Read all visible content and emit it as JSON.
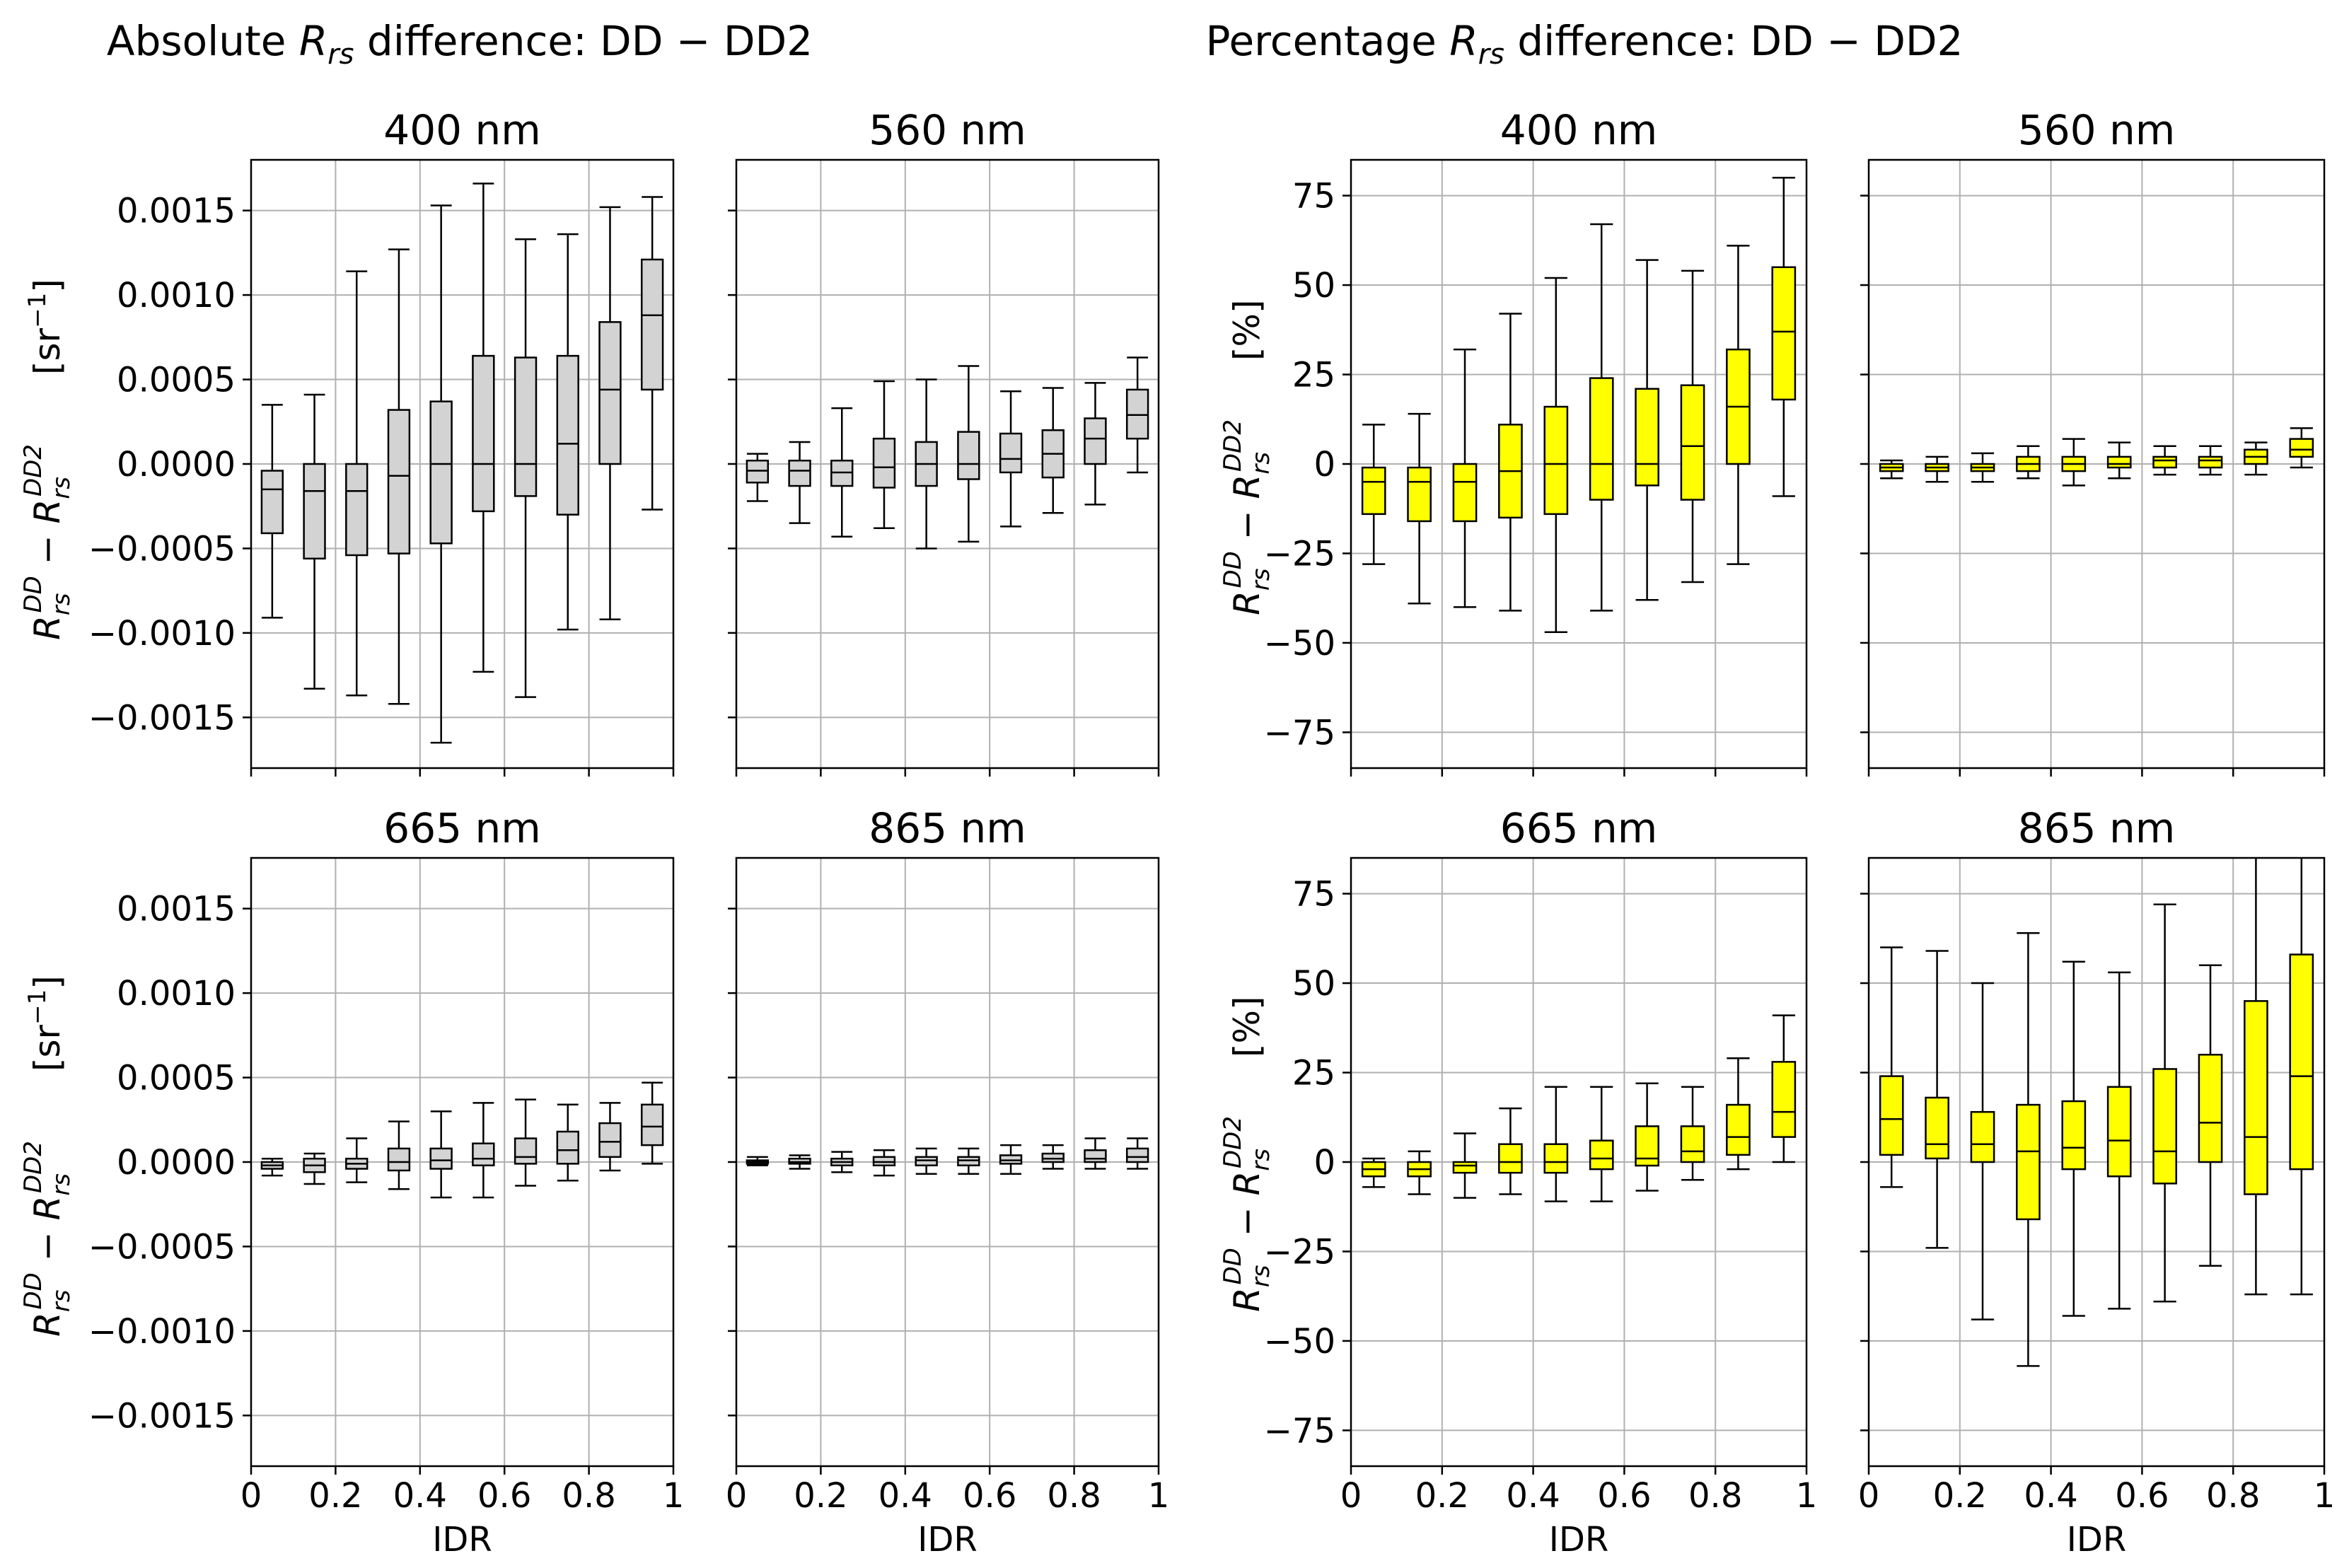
{
  "figure": {
    "left_title": {
      "pre": "Absolute ",
      "r": "R",
      "sub": "rs",
      "post": " difference: DD − DD2"
    },
    "right_title": {
      "pre": "Percentage ",
      "r": "R",
      "sub": "rs",
      "post": " difference: DD − DD2"
    },
    "abs_ylabel": {
      "unit_pre": "[sr",
      "unit_sup": "−1",
      "unit_post": "]"
    },
    "pct_ylabel": {
      "unit": "[%]"
    },
    "colors": {
      "abs_box": "#d3d3d3",
      "pct_box": "#ffff00",
      "edge": "#000000",
      "grid": "#b0b0b0"
    }
  },
  "chart_data": [
    {
      "type": "box",
      "group": "absolute",
      "title": "400 nm",
      "xlabel": "",
      "xlim": [
        0,
        1
      ],
      "ylim": [
        -0.0018,
        0.0018
      ],
      "yticks": [
        -0.0015,
        -0.001,
        -0.0005,
        0.0,
        0.0005,
        0.001,
        0.0015
      ],
      "yticklabels": [
        "−0.0015",
        "−0.0010",
        "−0.0005",
        "0.0000",
        "0.0005",
        "0.0010",
        "0.0015"
      ],
      "xticks": [
        0,
        0.2,
        0.4,
        0.6,
        0.8,
        1
      ],
      "xticklabels": [],
      "boxes": [
        {
          "x": 0.05,
          "whislo": -0.00091,
          "q1": -0.00041,
          "med": -0.00015,
          "q3": -4e-05,
          "whishi": 0.00035
        },
        {
          "x": 0.15,
          "whislo": -0.00133,
          "q1": -0.00056,
          "med": -0.00016,
          "q3": 0.0,
          "whishi": 0.00041
        },
        {
          "x": 0.25,
          "whislo": -0.00137,
          "q1": -0.00054,
          "med": -0.00016,
          "q3": 0.0,
          "whishi": 0.00114
        },
        {
          "x": 0.35,
          "whislo": -0.00142,
          "q1": -0.00053,
          "med": -7e-05,
          "q3": 0.00032,
          "whishi": 0.00127
        },
        {
          "x": 0.45,
          "whislo": -0.00165,
          "q1": -0.00047,
          "med": 0.0,
          "q3": 0.00037,
          "whishi": 0.00153
        },
        {
          "x": 0.55,
          "whislo": -0.00123,
          "q1": -0.00028,
          "med": 0.0,
          "q3": 0.00064,
          "whishi": 0.00166
        },
        {
          "x": 0.65,
          "whislo": -0.00138,
          "q1": -0.00019,
          "med": 0.0,
          "q3": 0.00063,
          "whishi": 0.00133
        },
        {
          "x": 0.75,
          "whislo": -0.00098,
          "q1": -0.0003,
          "med": 0.00012,
          "q3": 0.00064,
          "whishi": 0.00136
        },
        {
          "x": 0.85,
          "whislo": -0.00092,
          "q1": 0.0,
          "med": 0.00044,
          "q3": 0.00084,
          "whishi": 0.00152
        },
        {
          "x": 0.95,
          "whislo": -0.00027,
          "q1": 0.00044,
          "med": 0.00088,
          "q3": 0.00121,
          "whishi": 0.00158
        }
      ]
    },
    {
      "type": "box",
      "group": "absolute",
      "title": "560 nm",
      "xlabel": "",
      "xlim": [
        0,
        1
      ],
      "ylim": [
        -0.0018,
        0.0018
      ],
      "yticks": [
        -0.0015,
        -0.001,
        -0.0005,
        0.0,
        0.0005,
        0.001,
        0.0015
      ],
      "yticklabels": [],
      "xticks": [
        0,
        0.2,
        0.4,
        0.6,
        0.8,
        1
      ],
      "xticklabels": [],
      "boxes": [
        {
          "x": 0.05,
          "whislo": -0.00022,
          "q1": -0.00011,
          "med": -4e-05,
          "q3": 2e-05,
          "whishi": 6e-05
        },
        {
          "x": 0.15,
          "whislo": -0.00035,
          "q1": -0.00013,
          "med": -4e-05,
          "q3": 2e-05,
          "whishi": 0.00013
        },
        {
          "x": 0.25,
          "whislo": -0.00043,
          "q1": -0.00013,
          "med": -5e-05,
          "q3": 2e-05,
          "whishi": 0.00033
        },
        {
          "x": 0.35,
          "whislo": -0.00038,
          "q1": -0.00014,
          "med": -2e-05,
          "q3": 0.00015,
          "whishi": 0.00049
        },
        {
          "x": 0.45,
          "whislo": -0.0005,
          "q1": -0.00013,
          "med": 0.0,
          "q3": 0.00013,
          "whishi": 0.0005
        },
        {
          "x": 0.55,
          "whislo": -0.00046,
          "q1": -9e-05,
          "med": 0.0,
          "q3": 0.00019,
          "whishi": 0.00058
        },
        {
          "x": 0.65,
          "whislo": -0.00037,
          "q1": -5e-05,
          "med": 3e-05,
          "q3": 0.00018,
          "whishi": 0.00043
        },
        {
          "x": 0.75,
          "whislo": -0.00029,
          "q1": -8e-05,
          "med": 6e-05,
          "q3": 0.0002,
          "whishi": 0.00045
        },
        {
          "x": 0.85,
          "whislo": -0.00024,
          "q1": 0.0,
          "med": 0.00015,
          "q3": 0.00027,
          "whishi": 0.00048
        },
        {
          "x": 0.95,
          "whislo": -5e-05,
          "q1": 0.00015,
          "med": 0.00029,
          "q3": 0.00044,
          "whishi": 0.00063
        }
      ]
    },
    {
      "type": "box",
      "group": "absolute",
      "title": "665 nm",
      "xlabel": "IDR",
      "xlim": [
        0,
        1
      ],
      "ylim": [
        -0.0018,
        0.0018
      ],
      "yticks": [
        -0.0015,
        -0.001,
        -0.0005,
        0.0,
        0.0005,
        0.001,
        0.0015
      ],
      "yticklabels": [
        "−0.0015",
        "−0.0010",
        "−0.0005",
        "0.0000",
        "0.0005",
        "0.0010",
        "0.0015"
      ],
      "xticks": [
        0,
        0.2,
        0.4,
        0.6,
        0.8,
        1
      ],
      "xticklabels": [
        "0",
        "0.2",
        "0.4",
        "0.6",
        "0.8",
        "1"
      ],
      "boxes": [
        {
          "x": 0.05,
          "whislo": -8e-05,
          "q1": -4e-05,
          "med": -2e-05,
          "q3": 0.0,
          "whishi": 2e-05
        },
        {
          "x": 0.15,
          "whislo": -0.00013,
          "q1": -6e-05,
          "med": -2e-05,
          "q3": 2e-05,
          "whishi": 5e-05
        },
        {
          "x": 0.25,
          "whislo": -0.00012,
          "q1": -4e-05,
          "med": -1e-05,
          "q3": 2e-05,
          "whishi": 0.00014
        },
        {
          "x": 0.35,
          "whislo": -0.00016,
          "q1": -5e-05,
          "med": 0.0,
          "q3": 8e-05,
          "whishi": 0.00024
        },
        {
          "x": 0.45,
          "whislo": -0.00021,
          "q1": -4e-05,
          "med": 1e-05,
          "q3": 8e-05,
          "whishi": 0.0003
        },
        {
          "x": 0.55,
          "whislo": -0.00021,
          "q1": -2e-05,
          "med": 2e-05,
          "q3": 0.00011,
          "whishi": 0.00035
        },
        {
          "x": 0.65,
          "whislo": -0.00014,
          "q1": -1e-05,
          "med": 3e-05,
          "q3": 0.00014,
          "whishi": 0.00037
        },
        {
          "x": 0.75,
          "whislo": -0.00011,
          "q1": -1e-05,
          "med": 7e-05,
          "q3": 0.00018,
          "whishi": 0.00034
        },
        {
          "x": 0.85,
          "whislo": -5e-05,
          "q1": 3e-05,
          "med": 0.00012,
          "q3": 0.00023,
          "whishi": 0.00035
        },
        {
          "x": 0.95,
          "whislo": -1e-05,
          "q1": 0.0001,
          "med": 0.00021,
          "q3": 0.00034,
          "whishi": 0.00047
        }
      ]
    },
    {
      "type": "box",
      "group": "absolute",
      "title": "865 nm",
      "xlabel": "IDR",
      "xlim": [
        0,
        1
      ],
      "ylim": [
        -0.0018,
        0.0018
      ],
      "yticks": [
        -0.0015,
        -0.001,
        -0.0005,
        0.0,
        0.0005,
        0.001,
        0.0015
      ],
      "yticklabels": [],
      "xticks": [
        0,
        0.2,
        0.4,
        0.6,
        0.8,
        1
      ],
      "xticklabels": [
        "0",
        "0.2",
        "0.4",
        "0.6",
        "0.8",
        "1"
      ],
      "boxes": [
        {
          "x": 0.05,
          "whislo": -2e-05,
          "q1": -1e-05,
          "med": 0.0,
          "q3": 1e-05,
          "whishi": 3e-05
        },
        {
          "x": 0.15,
          "whislo": -4e-05,
          "q1": -1e-05,
          "med": 0.0,
          "q3": 2e-05,
          "whishi": 4e-05
        },
        {
          "x": 0.25,
          "whislo": -6e-05,
          "q1": -2e-05,
          "med": 0.0,
          "q3": 2e-05,
          "whishi": 6e-05
        },
        {
          "x": 0.35,
          "whislo": -8e-05,
          "q1": -2e-05,
          "med": 0.0,
          "q3": 3e-05,
          "whishi": 7e-05
        },
        {
          "x": 0.45,
          "whislo": -7e-05,
          "q1": -2e-05,
          "med": 1e-05,
          "q3": 3e-05,
          "whishi": 8e-05
        },
        {
          "x": 0.55,
          "whislo": -7e-05,
          "q1": -2e-05,
          "med": 1e-05,
          "q3": 3e-05,
          "whishi": 8e-05
        },
        {
          "x": 0.65,
          "whislo": -7e-05,
          "q1": -1e-05,
          "med": 1e-05,
          "q3": 4e-05,
          "whishi": 0.0001
        },
        {
          "x": 0.75,
          "whislo": -4e-05,
          "q1": 0.0,
          "med": 2e-05,
          "q3": 5e-05,
          "whishi": 0.0001
        },
        {
          "x": 0.85,
          "whislo": -4e-05,
          "q1": 0.0,
          "med": 2e-05,
          "q3": 7e-05,
          "whishi": 0.00014
        },
        {
          "x": 0.95,
          "whislo": -4e-05,
          "q1": 0.0,
          "med": 3e-05,
          "q3": 8e-05,
          "whishi": 0.00014
        }
      ]
    },
    {
      "type": "box",
      "group": "percentage",
      "title": "400 nm",
      "xlabel": "",
      "xlim": [
        0,
        1
      ],
      "ylim": [
        -85,
        85
      ],
      "yticks": [
        -75,
        -50,
        -25,
        0,
        25,
        50,
        75
      ],
      "yticklabels": [
        "−75",
        "−50",
        "−25",
        "0",
        "25",
        "50",
        "75"
      ],
      "xticks": [
        0,
        0.2,
        0.4,
        0.6,
        0.8,
        1
      ],
      "xticklabels": [],
      "boxes": [
        {
          "x": 0.05,
          "whislo": -28,
          "q1": -14,
          "med": -5,
          "q3": -1,
          "whishi": 11
        },
        {
          "x": 0.15,
          "whislo": -39,
          "q1": -16,
          "med": -5,
          "q3": -1,
          "whishi": 14
        },
        {
          "x": 0.25,
          "whislo": -40,
          "q1": -16,
          "med": -5,
          "q3": 0,
          "whishi": 32
        },
        {
          "x": 0.35,
          "whislo": -41,
          "q1": -15,
          "med": -2,
          "q3": 11,
          "whishi": 42
        },
        {
          "x": 0.45,
          "whislo": -47,
          "q1": -14,
          "med": 0,
          "q3": 16,
          "whishi": 52
        },
        {
          "x": 0.55,
          "whislo": -41,
          "q1": -10,
          "med": 0,
          "q3": 24,
          "whishi": 67
        },
        {
          "x": 0.65,
          "whislo": -38,
          "q1": -6,
          "med": 0,
          "q3": 21,
          "whishi": 57
        },
        {
          "x": 0.75,
          "whislo": -33,
          "q1": -10,
          "med": 5,
          "q3": 22,
          "whishi": 54
        },
        {
          "x": 0.85,
          "whislo": -28,
          "q1": 0,
          "med": 16,
          "q3": 32,
          "whishi": 61
        },
        {
          "x": 0.95,
          "whislo": -9,
          "q1": 18,
          "med": 37,
          "q3": 55,
          "whishi": 80
        }
      ]
    },
    {
      "type": "box",
      "group": "percentage",
      "title": "560 nm",
      "xlabel": "",
      "xlim": [
        0,
        1
      ],
      "ylim": [
        -85,
        85
      ],
      "yticks": [
        -75,
        -50,
        -25,
        0,
        25,
        50,
        75
      ],
      "yticklabels": [],
      "xticks": [
        0,
        0.2,
        0.4,
        0.6,
        0.8,
        1
      ],
      "xticklabels": [],
      "boxes": [
        {
          "x": 0.05,
          "whislo": -4,
          "q1": -2,
          "med": -1,
          "q3": 0,
          "whishi": 1
        },
        {
          "x": 0.15,
          "whislo": -5,
          "q1": -2,
          "med": -1,
          "q3": 0,
          "whishi": 2
        },
        {
          "x": 0.25,
          "whislo": -5,
          "q1": -2,
          "med": -1,
          "q3": 0,
          "whishi": 3
        },
        {
          "x": 0.35,
          "whislo": -4,
          "q1": -2,
          "med": 0,
          "q3": 2,
          "whishi": 5
        },
        {
          "x": 0.45,
          "whislo": -6,
          "q1": -2,
          "med": 0,
          "q3": 2,
          "whishi": 7
        },
        {
          "x": 0.55,
          "whislo": -4,
          "q1": -1,
          "med": 0,
          "q3": 2,
          "whishi": 6
        },
        {
          "x": 0.65,
          "whislo": -3,
          "q1": -1,
          "med": 1,
          "q3": 2,
          "whishi": 5
        },
        {
          "x": 0.75,
          "whislo": -3,
          "q1": -1,
          "med": 1,
          "q3": 2,
          "whishi": 5
        },
        {
          "x": 0.85,
          "whislo": -3,
          "q1": 0,
          "med": 2,
          "q3": 4,
          "whishi": 6
        },
        {
          "x": 0.95,
          "whislo": -1,
          "q1": 2,
          "med": 4,
          "q3": 7,
          "whishi": 10
        }
      ]
    },
    {
      "type": "box",
      "group": "percentage",
      "title": "665 nm",
      "xlabel": "IDR",
      "xlim": [
        0,
        1
      ],
      "ylim": [
        -85,
        85
      ],
      "yticks": [
        -75,
        -50,
        -25,
        0,
        25,
        50,
        75
      ],
      "yticklabels": [
        "−75",
        "−50",
        "−25",
        "0",
        "25",
        "50",
        "75"
      ],
      "xticks": [
        0,
        0.2,
        0.4,
        0.6,
        0.8,
        1
      ],
      "xticklabels": [
        "0",
        "0.2",
        "0.4",
        "0.6",
        "0.8",
        "1"
      ],
      "boxes": [
        {
          "x": 0.05,
          "whislo": -7,
          "q1": -4,
          "med": -2,
          "q3": 0,
          "whishi": 1
        },
        {
          "x": 0.15,
          "whislo": -9,
          "q1": -4,
          "med": -2,
          "q3": 0,
          "whishi": 3
        },
        {
          "x": 0.25,
          "whislo": -10,
          "q1": -3,
          "med": -1,
          "q3": 0,
          "whishi": 8
        },
        {
          "x": 0.35,
          "whislo": -9,
          "q1": -3,
          "med": 0,
          "q3": 5,
          "whishi": 15
        },
        {
          "x": 0.45,
          "whislo": -11,
          "q1": -3,
          "med": 0,
          "q3": 5,
          "whishi": 21
        },
        {
          "x": 0.55,
          "whislo": -11,
          "q1": -2,
          "med": 1,
          "q3": 6,
          "whishi": 21
        },
        {
          "x": 0.65,
          "whislo": -8,
          "q1": -1,
          "med": 1,
          "q3": 10,
          "whishi": 22
        },
        {
          "x": 0.75,
          "whislo": -5,
          "q1": 0,
          "med": 3,
          "q3": 10,
          "whishi": 21
        },
        {
          "x": 0.85,
          "whislo": -2,
          "q1": 2,
          "med": 7,
          "q3": 16,
          "whishi": 29
        },
        {
          "x": 0.95,
          "whislo": 0,
          "q1": 7,
          "med": 14,
          "q3": 28,
          "whishi": 41
        }
      ]
    },
    {
      "type": "box",
      "group": "percentage",
      "title": "865 nm",
      "xlabel": "IDR",
      "xlim": [
        0,
        1
      ],
      "ylim": [
        -85,
        85
      ],
      "yticks": [
        -75,
        -50,
        -25,
        0,
        25,
        50,
        75
      ],
      "yticklabels": [],
      "xticks": [
        0,
        0.2,
        0.4,
        0.6,
        0.8,
        1
      ],
      "xticklabels": [
        "0",
        "0.2",
        "0.4",
        "0.6",
        "0.8",
        "1"
      ],
      "boxes": [
        {
          "x": 0.05,
          "whislo": -7,
          "q1": 2,
          "med": 12,
          "q3": 24,
          "whishi": 60
        },
        {
          "x": 0.15,
          "whislo": -24,
          "q1": 1,
          "med": 5,
          "q3": 18,
          "whishi": 59
        },
        {
          "x": 0.25,
          "whislo": -44,
          "q1": 0,
          "med": 5,
          "q3": 14,
          "whishi": 50
        },
        {
          "x": 0.35,
          "whislo": -57,
          "q1": -16,
          "med": 3,
          "q3": 16,
          "whishi": 64
        },
        {
          "x": 0.45,
          "whislo": -43,
          "q1": -2,
          "med": 4,
          "q3": 17,
          "whishi": 56
        },
        {
          "x": 0.55,
          "whislo": -41,
          "q1": -4,
          "med": 6,
          "q3": 21,
          "whishi": 53
        },
        {
          "x": 0.65,
          "whislo": -39,
          "q1": -6,
          "med": 3,
          "q3": 26,
          "whishi": 72
        },
        {
          "x": 0.75,
          "whislo": -29,
          "q1": 0,
          "med": 11,
          "q3": 30,
          "whishi": 55
        },
        {
          "x": 0.85,
          "whislo": -37,
          "q1": -9,
          "med": 7,
          "q3": 45,
          "whishi": 92
        },
        {
          "x": 0.95,
          "whislo": -37,
          "q1": -2,
          "med": 24,
          "q3": 58,
          "whishi": 91
        }
      ]
    }
  ]
}
